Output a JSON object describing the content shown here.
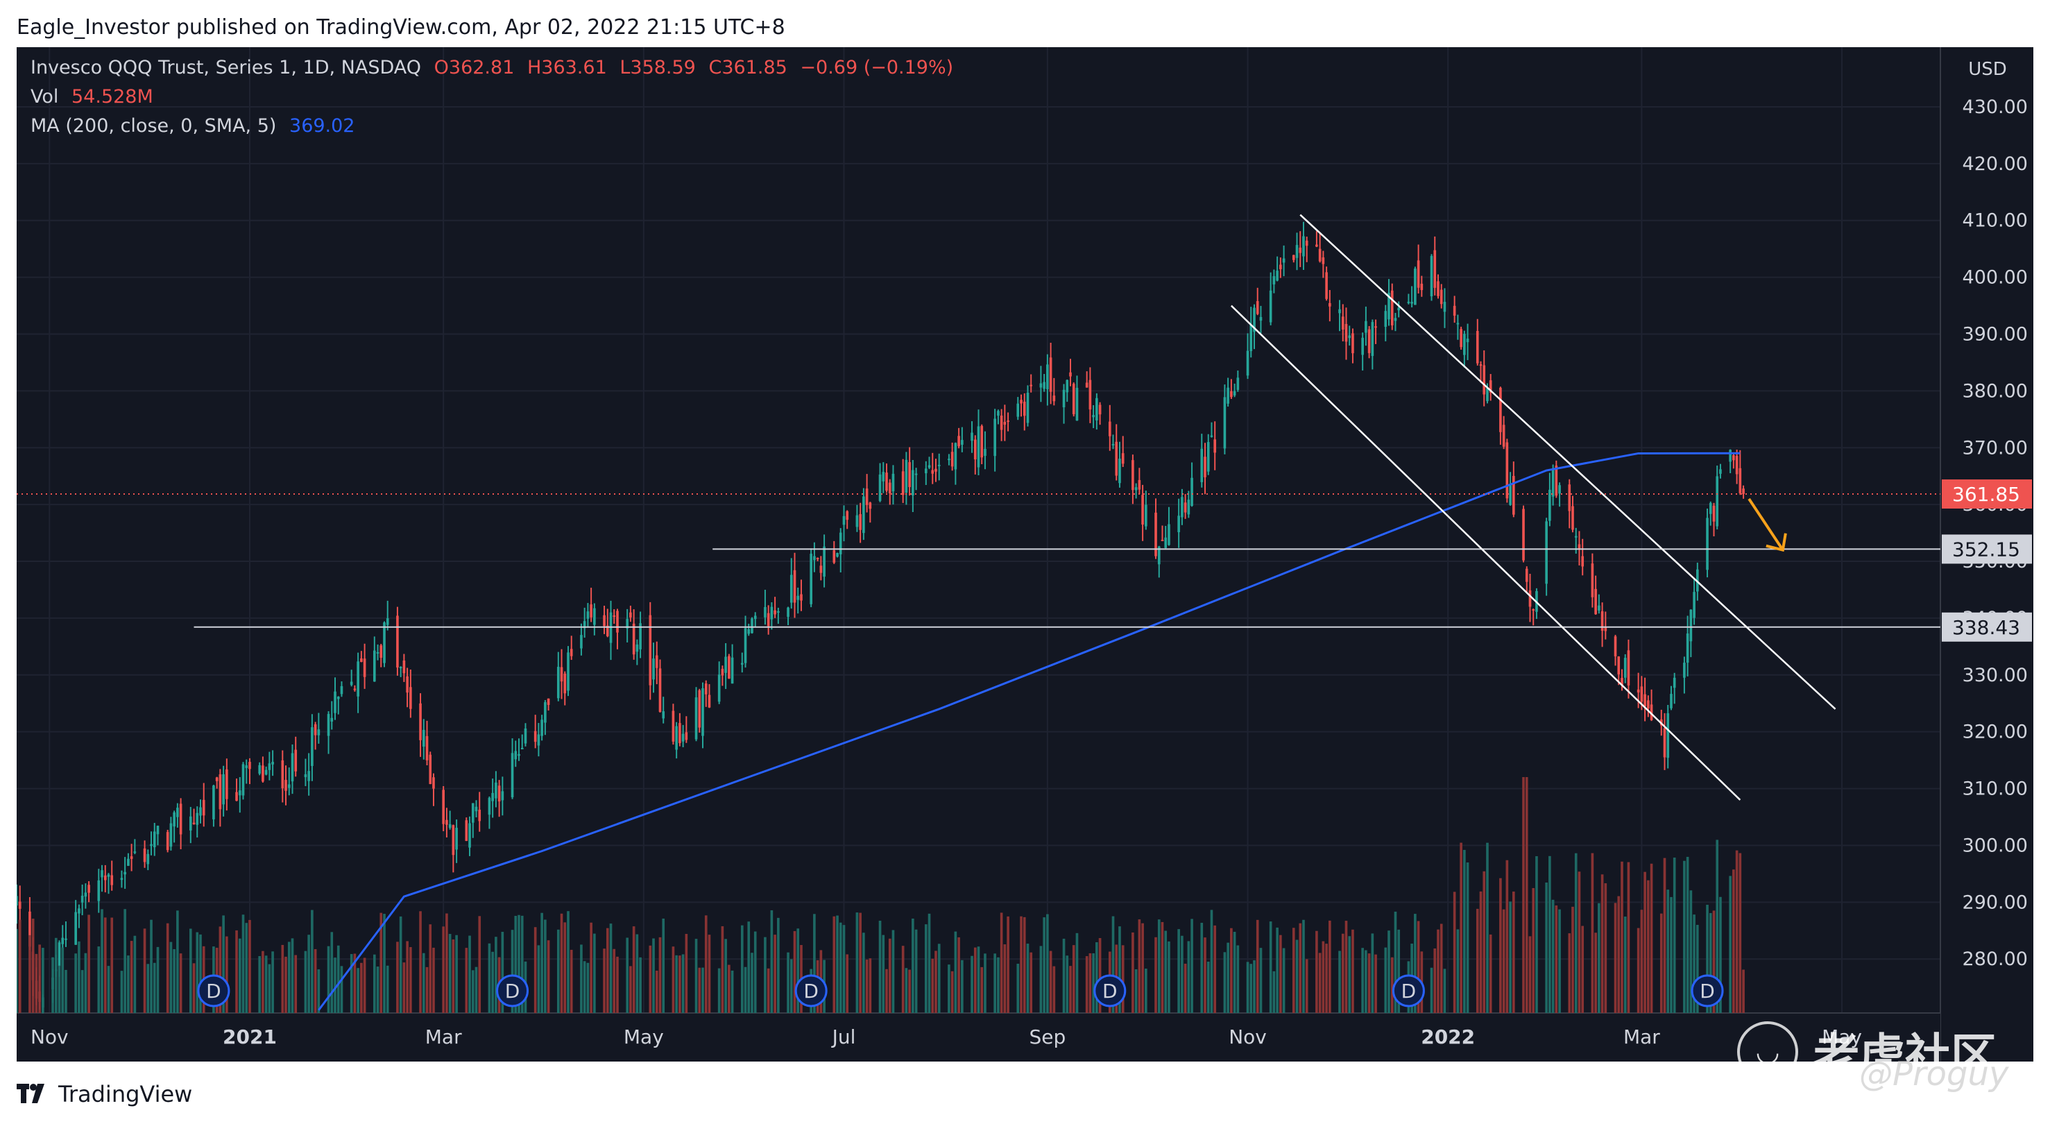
{
  "header": {
    "publisher_line": "Eagle_Investor published on TradingView.com, Apr 02, 2022 21:15 UTC+8"
  },
  "legend": {
    "symbol": "Invesco QQQ Trust, Series 1, 1D, NASDAQ",
    "open": "O362.81",
    "high": "H363.61",
    "low": "L358.59",
    "close": "C361.85",
    "change": "−0.69 (−0.19%)",
    "vol_label": "Vol",
    "vol_value": "54.528M",
    "ma_label": "MA (200, close, 0, SMA, 5)",
    "ma_value": "369.02"
  },
  "footer": {
    "brand": "TradingView"
  },
  "watermark": {
    "text": "老虎社区",
    "handle": "@Proguy"
  },
  "colors": {
    "background": "#131722",
    "up": "#26a69a",
    "down": "#ef5350",
    "ma": "#2962ff",
    "vol_up": "#1f6e68",
    "vol_down": "#8e3535",
    "arrow": "#f7a21b",
    "text": "#d1d4dc"
  },
  "chart_data": {
    "type": "candlestick",
    "title": "Invesco QQQ Trust, Series 1, 1D, NASDAQ",
    "currency": "USD",
    "y_ticks": [
      280,
      290,
      300,
      310,
      320,
      330,
      340,
      350,
      360,
      370,
      380,
      390,
      400,
      410,
      420,
      430
    ],
    "y_tick_labels": [
      "280.00",
      "290.00",
      "300.00",
      "310.00",
      "320.00",
      "330.00",
      "340.00",
      "350.00",
      "360.00",
      "370.00",
      "380.00",
      "390.00",
      "400.00",
      "410.00",
      "420.00",
      "430.00"
    ],
    "ylim": [
      270.5,
      440.5
    ],
    "x_labels": [
      "Nov",
      "2021",
      "Mar",
      "May",
      "Jul",
      "Sep",
      "Nov",
      "2022",
      "Mar",
      "May"
    ],
    "x_bold": [
      "2021",
      "2022"
    ],
    "x_range": [
      "2020-10-22",
      "2022-05-31"
    ],
    "x_ticks": [
      "2020-11-01",
      "2021-01-01",
      "2021-03-01",
      "2021-05-01",
      "2021-07-01",
      "2021-09-01",
      "2021-11-01",
      "2022-01-01",
      "2022-03-01",
      "2022-05-01"
    ],
    "price_path": [
      [
        "2020-10-22",
        290
      ],
      [
        "2020-10-30",
        271
      ],
      [
        "2020-11-09",
        290
      ],
      [
        "2020-11-25",
        297
      ],
      [
        "2020-12-31",
        312
      ],
      [
        "2021-01-15",
        313
      ],
      [
        "2021-02-12",
        338
      ],
      [
        "2021-03-04",
        300
      ],
      [
        "2021-03-08",
        304
      ],
      [
        "2021-03-25",
        316
      ],
      [
        "2021-04-16",
        340
      ],
      [
        "2021-04-30",
        336
      ],
      [
        "2021-05-12",
        318
      ],
      [
        "2021-05-26",
        332
      ],
      [
        "2021-06-30",
        354
      ],
      [
        "2021-07-15",
        364
      ],
      [
        "2021-08-05",
        368
      ],
      [
        "2021-08-31",
        382
      ],
      [
        "2021-09-15",
        377
      ],
      [
        "2021-10-04",
        354
      ],
      [
        "2021-10-22",
        370
      ],
      [
        "2021-11-05",
        396
      ],
      [
        "2021-11-19",
        406
      ],
      [
        "2021-12-03",
        387
      ],
      [
        "2021-12-27",
        402
      ],
      [
        "2022-01-14",
        378
      ],
      [
        "2022-01-27",
        342
      ],
      [
        "2022-02-02",
        363
      ],
      [
        "2022-02-11",
        350
      ],
      [
        "2022-02-24",
        330
      ],
      [
        "2022-03-08",
        318
      ],
      [
        "2022-03-21",
        356
      ],
      [
        "2022-03-29",
        371
      ],
      [
        "2022-04-01",
        361.85
      ]
    ],
    "ma200_path": [
      [
        "2021-01-22",
        271
      ],
      [
        "2021-02-17",
        291
      ],
      [
        "2021-03-31",
        299
      ],
      [
        "2021-05-28",
        311
      ],
      [
        "2021-07-30",
        324
      ],
      [
        "2021-09-30",
        338
      ],
      [
        "2021-11-30",
        352
      ],
      [
        "2022-01-31",
        366
      ],
      [
        "2022-02-28",
        369
      ],
      [
        "2022-03-31",
        369.02
      ]
    ],
    "volume_scale_note": "volume bars at bottom, relative",
    "horizontal_levels": [
      {
        "value": 352.15,
        "label": "352.15",
        "from": "2021-05-22"
      },
      {
        "value": 338.43,
        "label": "338.43",
        "from": "2020-12-15"
      }
    ],
    "last_price": {
      "value": 361.85,
      "label": "361.85"
    },
    "trend_channel": {
      "upper": [
        [
          "2021-11-17",
          411
        ],
        [
          "2022-04-29",
          324
        ]
      ],
      "lower": [
        [
          "2021-10-27",
          395
        ],
        [
          "2022-03-31",
          308
        ]
      ]
    },
    "projection_arrow": {
      "from": [
        "2022-04-01",
        361
      ],
      "to": [
        "2022-04-13",
        352
      ]
    },
    "dividend_markers": [
      "2020-12-21",
      "2021-03-22",
      "2021-06-21",
      "2021-09-20",
      "2021-12-20",
      "2022-03-21"
    ],
    "dividend_label": "D",
    "legend_placement": "top-left",
    "grid": true
  }
}
